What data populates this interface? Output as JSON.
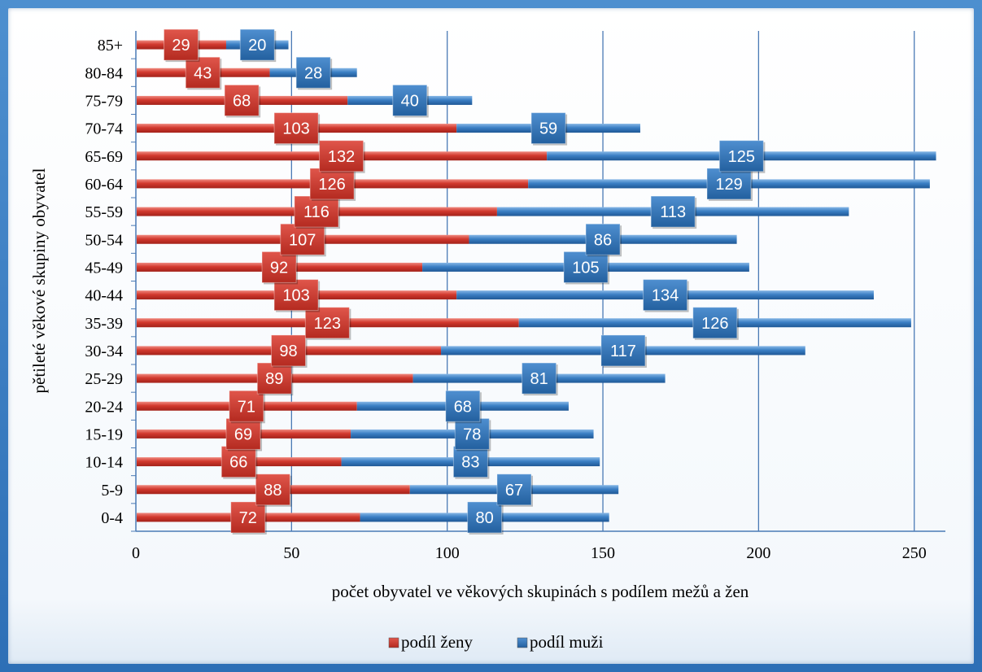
{
  "chart_data": {
    "type": "bar",
    "orientation": "horizontal",
    "stacked": true,
    "categories": [
      "0-4",
      "5-9",
      "10-14",
      "15-19",
      "20-24",
      "25-29",
      "30-34",
      "35-39",
      "40-44",
      "45-49",
      "50-54",
      "55-59",
      "60-64",
      "65-69",
      "70-74",
      "75-79",
      "80-84",
      "85+"
    ],
    "series": [
      {
        "name": "podíl ženy",
        "color": "#c0392b",
        "values": [
          72,
          88,
          66,
          69,
          71,
          89,
          98,
          123,
          103,
          92,
          107,
          116,
          126,
          132,
          103,
          68,
          43,
          29
        ]
      },
      {
        "name": "podíl muži",
        "color": "#2e75b6",
        "values": [
          80,
          67,
          83,
          78,
          68,
          81,
          117,
          126,
          134,
          105,
          86,
          113,
          129,
          125,
          59,
          40,
          28,
          20
        ]
      }
    ],
    "x_ticks": [
      "0",
      "50",
      "100",
      "150",
      "200",
      "250"
    ],
    "xlim": [
      0,
      260
    ],
    "xlabel": "počet obyvatel ve věkových skupinách s podílem mežů a žen",
    "ylabel": "pětileté věkové skupiny obyvatel",
    "grid": "vertical",
    "legend": "bottom-center",
    "data_labels": true
  }
}
